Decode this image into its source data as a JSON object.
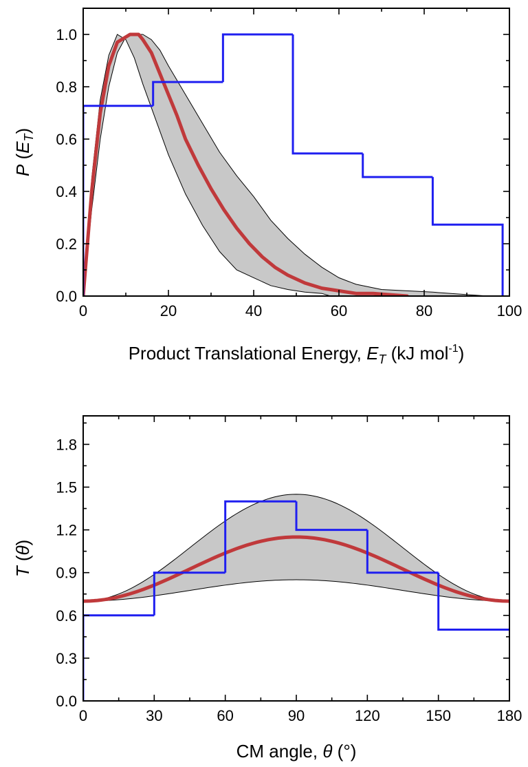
{
  "chart_data": [
    {
      "type": "line",
      "ylabel": "P (E_T)",
      "ylabel_parts": {
        "main": "P",
        "open": " (",
        "sym": "E",
        "sub": "T",
        "close": ")"
      },
      "xlabel": "Product Translational Energy, E_T (kJ mol-1)",
      "xlabel_parts": {
        "main": "Product Translational Energy, ",
        "sym": "E",
        "sub": "T",
        "unit": " (kJ mol",
        "sup": "-1",
        "close": ")"
      },
      "xlim": [
        0,
        100
      ],
      "ylim": [
        0,
        1.1
      ],
      "xticks": [
        0,
        20,
        40,
        60,
        80,
        100
      ],
      "xtick_labels": [
        "0",
        "20",
        "40",
        "60",
        "80",
        "100"
      ],
      "yticks": [
        0,
        0.2,
        0.4,
        0.6,
        0.8,
        1.0
      ],
      "ytick_labels": [
        "0.0",
        "0.2",
        "0.4",
        "0.6",
        "0.8",
        "1.0"
      ],
      "band": {
        "upper": [
          [
            0,
            0
          ],
          [
            2,
            0.33
          ],
          [
            4,
            0.6
          ],
          [
            6,
            0.8
          ],
          [
            8,
            0.93
          ],
          [
            10,
            0.99
          ],
          [
            12,
            1.0
          ],
          [
            14,
            1.0
          ],
          [
            16,
            0.98
          ],
          [
            18,
            0.94
          ],
          [
            20,
            0.88
          ],
          [
            24,
            0.77
          ],
          [
            28,
            0.66
          ],
          [
            32,
            0.55
          ],
          [
            36,
            0.46
          ],
          [
            40,
            0.38
          ],
          [
            44,
            0.29
          ],
          [
            48,
            0.22
          ],
          [
            52,
            0.16
          ],
          [
            56,
            0.11
          ],
          [
            60,
            0.07
          ],
          [
            64,
            0.045
          ],
          [
            70,
            0.025
          ],
          [
            76,
            0.02
          ],
          [
            82,
            0.015
          ],
          [
            88,
            0.008
          ],
          [
            95,
            0.0
          ]
        ],
        "lower": [
          [
            0,
            0
          ],
          [
            2,
            0.45
          ],
          [
            4,
            0.75
          ],
          [
            6,
            0.92
          ],
          [
            8,
            1.0
          ],
          [
            10,
            0.98
          ],
          [
            12,
            0.91
          ],
          [
            14,
            0.81
          ],
          [
            16,
            0.72
          ],
          [
            18,
            0.63
          ],
          [
            20,
            0.54
          ],
          [
            24,
            0.39
          ],
          [
            28,
            0.27
          ],
          [
            32,
            0.17
          ],
          [
            36,
            0.1
          ],
          [
            40,
            0.07
          ],
          [
            44,
            0.04
          ],
          [
            48,
            0.025
          ],
          [
            52,
            0.015
          ],
          [
            56,
            0.01
          ],
          [
            58,
            0.0
          ]
        ]
      },
      "series": [
        {
          "values": [
            [
              0,
              0
            ],
            [
              2,
              0.4
            ],
            [
              4,
              0.7
            ],
            [
              6,
              0.88
            ],
            [
              8,
              0.97
            ],
            [
              10,
              0.99
            ],
            [
              11,
              1.0
            ],
            [
              13,
              1.0
            ],
            [
              14,
              0.98
            ],
            [
              16,
              0.93
            ],
            [
              18,
              0.85
            ],
            [
              20,
              0.77
            ],
            [
              22,
              0.69
            ],
            [
              24,
              0.6
            ],
            [
              27,
              0.5
            ],
            [
              30,
              0.41
            ],
            [
              33,
              0.33
            ],
            [
              36,
              0.26
            ],
            [
              39,
              0.2
            ],
            [
              42,
              0.15
            ],
            [
              45,
              0.11
            ],
            [
              48,
              0.08
            ],
            [
              52,
              0.05
            ],
            [
              56,
              0.03
            ],
            [
              60,
              0.02
            ],
            [
              64,
              0.01
            ],
            [
              68,
              0.01
            ],
            [
              72,
              0.005
            ],
            [
              76,
              0.0
            ]
          ]
        },
        {
          "type": "step",
          "edges": [
            0,
            16.4,
            32.8,
            49.2,
            65.6,
            82.0,
            98.4
          ],
          "values": [
            0.727,
            0.818,
            1.0,
            0.545,
            0.455,
            0.273
          ]
        }
      ]
    },
    {
      "type": "line",
      "ylabel": "T (θ)",
      "ylabel_parts": {
        "main": "T",
        "open": " (",
        "sym": "θ",
        "close": ")"
      },
      "xlabel": "CM angle, θ (°)",
      "xlabel_parts": {
        "main": "CM angle, ",
        "sym": "θ",
        "close": " (°)"
      },
      "xlim": [
        0,
        180
      ],
      "ylim": [
        0,
        2.0
      ],
      "xticks": [
        0,
        30,
        60,
        90,
        120,
        150,
        180
      ],
      "xtick_labels": [
        "0",
        "30",
        "60",
        "90",
        "120",
        "150",
        "180"
      ],
      "yticks": [
        0,
        0.3,
        0.6,
        0.9,
        1.2,
        1.5,
        1.8
      ],
      "ytick_labels": [
        "0.0",
        "0.3",
        "0.6",
        "0.9",
        "1.2",
        "1.5",
        "1.8"
      ],
      "band": {
        "upper_peak": 1.45,
        "lower_peak": 0.85,
        "edge_value": 0.7
      },
      "series": [
        {
          "curve": "cosine",
          "edge_value": 0.7,
          "peak": 1.15
        },
        {
          "type": "step",
          "edges": [
            0,
            30,
            60,
            90,
            120,
            150,
            180
          ],
          "values": [
            0.6,
            0.9,
            1.4,
            1.2,
            0.9,
            0.5
          ]
        }
      ]
    }
  ]
}
